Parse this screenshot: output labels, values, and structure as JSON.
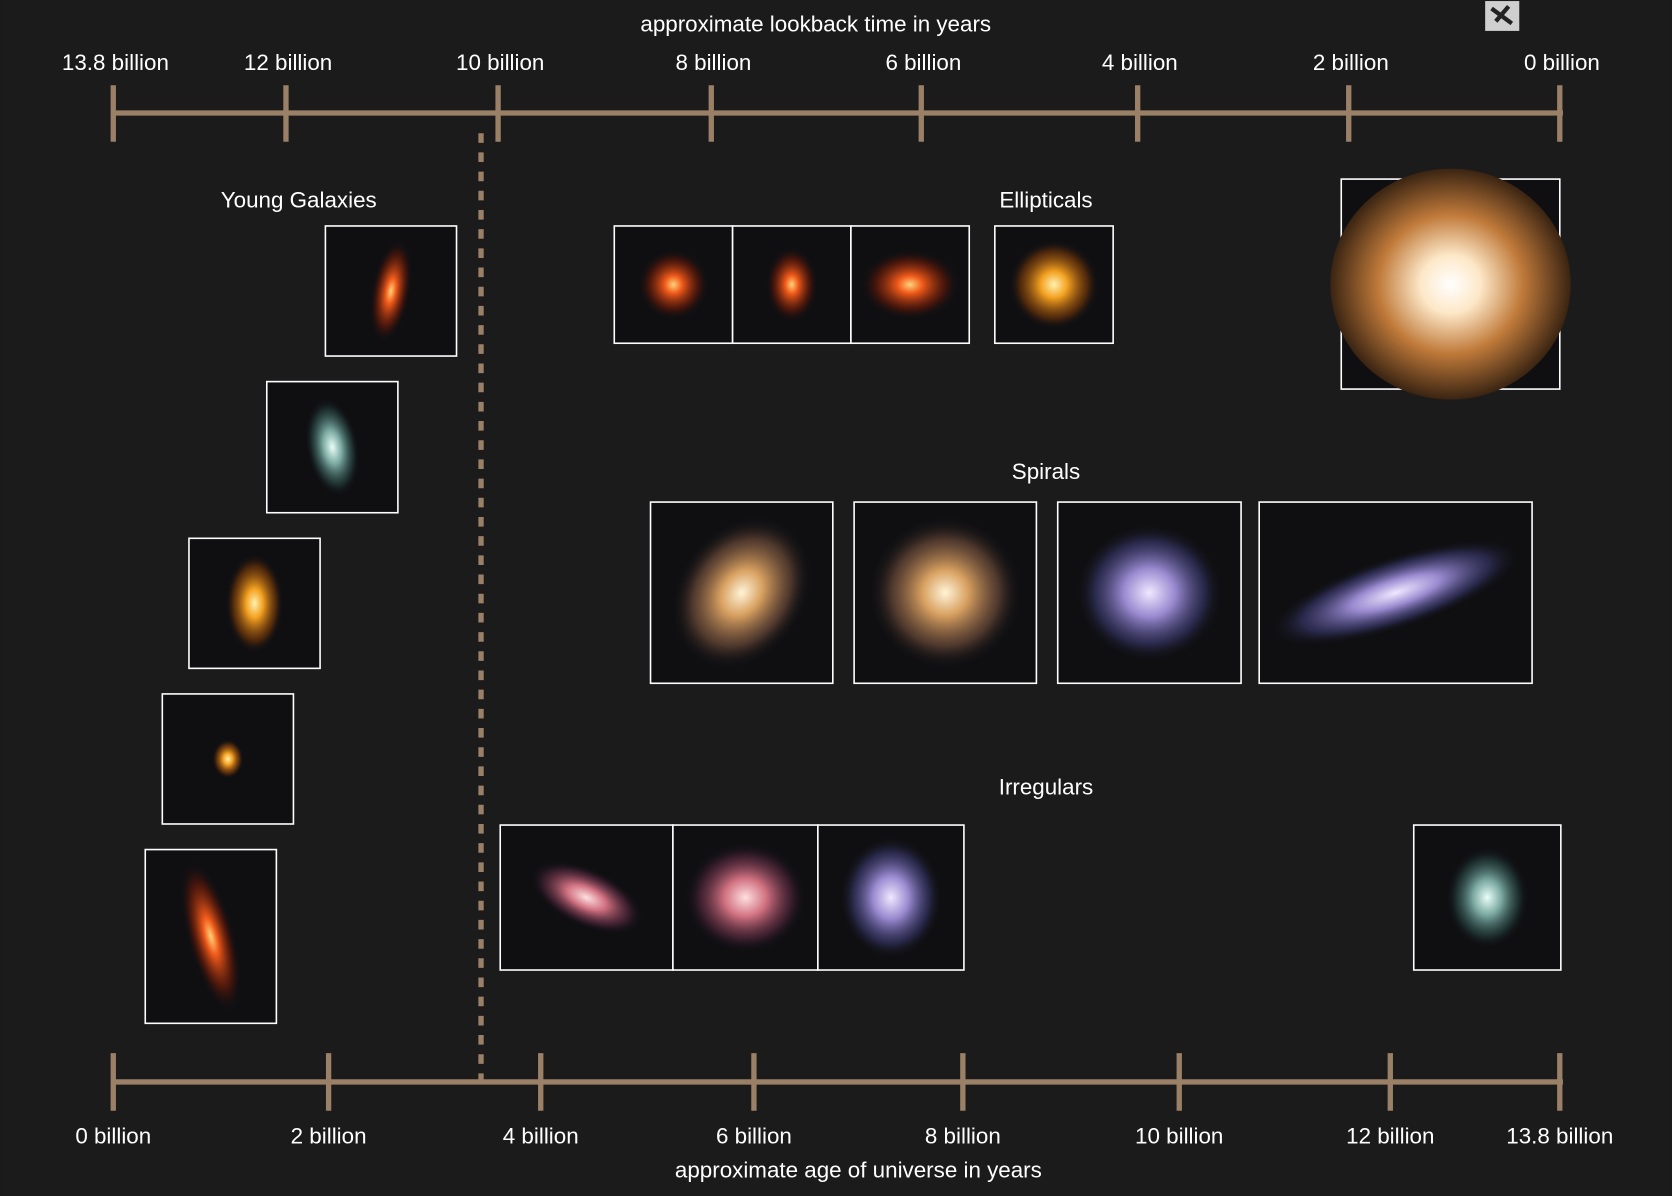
{
  "top_axis": {
    "title": "approximate lookback time in years",
    "ticks": [
      "13.8 billion",
      "12 billion",
      "10 billion",
      "8 billion",
      "6 billion",
      "4 billion",
      "2 billion",
      "0 billion"
    ]
  },
  "bottom_axis": {
    "title": "approximate age of universe in years",
    "ticks": [
      "0 billion",
      "2 billion",
      "4 billion",
      "6 billion",
      "8 billion",
      "10 billion",
      "12 billion",
      "13.8 billion"
    ]
  },
  "groups": [
    "Young Galaxies",
    "Ellipticals",
    "Spirals",
    "Irregulars"
  ]
}
